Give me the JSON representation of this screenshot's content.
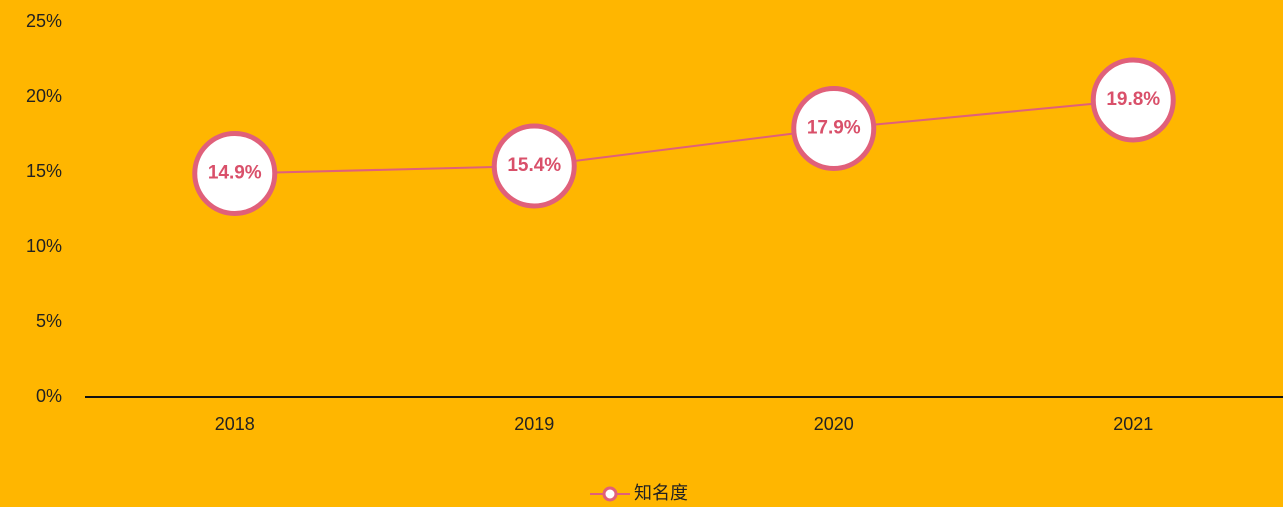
{
  "chart_data": {
    "type": "line",
    "categories": [
      "2018",
      "2019",
      "2020",
      "2021"
    ],
    "series": [
      {
        "name": "知名度",
        "color": "#e0607a",
        "values": [
          14.9,
          15.4,
          17.9,
          19.8
        ],
        "value_labels": [
          "14.9%",
          "15.4%",
          "17.9%",
          "19.8%"
        ]
      }
    ],
    "ylim": [
      0,
      25
    ],
    "yticks": [
      {
        "value": 0,
        "label": "0%"
      },
      {
        "value": 5,
        "label": "5%"
      },
      {
        "value": 10,
        "label": "10%"
      },
      {
        "value": 15,
        "label": "15%"
      },
      {
        "value": 20,
        "label": "20%"
      },
      {
        "value": 25,
        "label": "25%"
      }
    ],
    "legend": "bottom"
  }
}
